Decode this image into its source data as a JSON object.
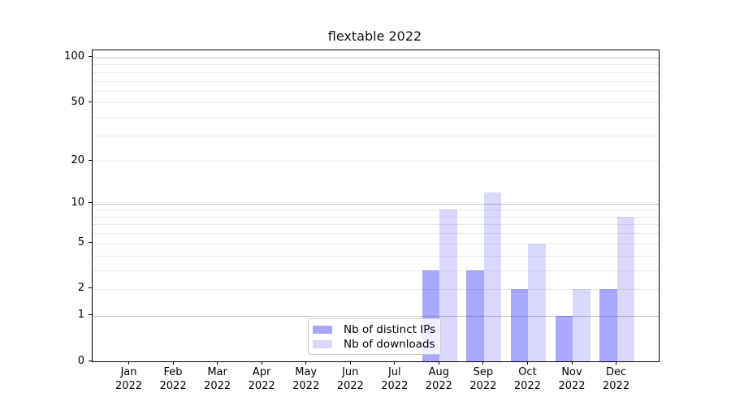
{
  "title": "flextable 2022",
  "chart_data": {
    "type": "bar",
    "title": "flextable 2022",
    "categories": [
      "Jan 2022",
      "Feb 2022",
      "Mar 2022",
      "Apr 2022",
      "May 2022",
      "Jun 2022",
      "Jul 2022",
      "Aug 2022",
      "Sep 2022",
      "Oct 2022",
      "Nov 2022",
      "Dec 2022"
    ],
    "series": [
      {
        "name": "Nb of distinct IPs",
        "color_hex": "#a9a9f7",
        "color_rgba": "rgba(0,0,250,0.34)",
        "values": [
          0,
          0,
          0,
          0,
          0,
          0,
          0,
          3,
          3,
          2,
          1,
          2
        ]
      },
      {
        "name": "Nb of downloads",
        "color_hex": "#dcdcfa",
        "color_rgba": "rgba(0,0,250,0.15)",
        "values": [
          0,
          0,
          0,
          0,
          0,
          0,
          0,
          9,
          12,
          5,
          2,
          8
        ]
      }
    ],
    "xlabel": "",
    "ylabel": "",
    "y_axis": {
      "scale": "log1p",
      "tick_values": [
        0,
        1,
        2,
        5,
        10,
        20,
        50,
        100
      ],
      "tick_labels": [
        "0",
        "1",
        "2",
        "5",
        "10",
        "20",
        "50",
        "100"
      ],
      "major_gridlines": [
        1,
        10,
        100
      ],
      "minor_gridlines": [
        2,
        3,
        4,
        5,
        6,
        7,
        8,
        9,
        20,
        30,
        40,
        50,
        60,
        70,
        80,
        90
      ],
      "ylim": [
        0,
        112
      ]
    },
    "grid": true,
    "legend": {
      "position": "bottom-center-inside",
      "entries": [
        "Nb of distinct IPs",
        "Nb of downloads"
      ]
    },
    "colors": {
      "major_grid": "#c4c4c4",
      "minor_grid": "#ebebeb",
      "frame": "#000000",
      "background": "#ffffff"
    }
  }
}
